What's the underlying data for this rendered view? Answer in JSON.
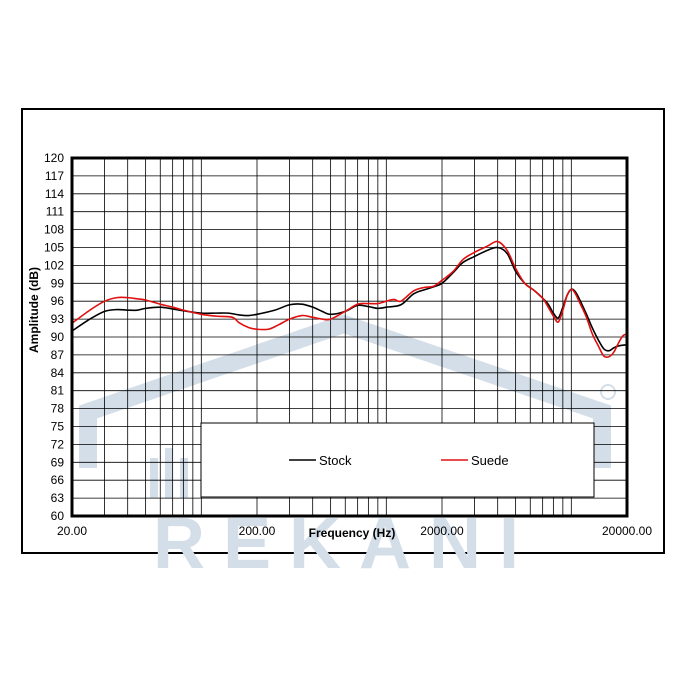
{
  "colors": {
    "stock": "#000000",
    "suede": "#e01010",
    "watermark": "#d2dde6"
  },
  "watermark": {
    "icon": "house-roof-logo-icon"
  },
  "chart_data": {
    "type": "line",
    "title": "",
    "xlabel": "Frequency (Hz)",
    "ylabel": "Amplitude (dB)",
    "x_scale": "log",
    "xlim": [
      20,
      20000
    ],
    "ylim": [
      60,
      120
    ],
    "x_ticks": [
      "20.00",
      "200.00",
      "2000.00",
      "20000.00"
    ],
    "x_tick_values": [
      20,
      200,
      2000,
      20000
    ],
    "y_ticks": [
      60,
      63,
      66,
      69,
      72,
      75,
      78,
      81,
      84,
      87,
      90,
      93,
      96,
      99,
      102,
      105,
      108,
      111,
      114,
      117,
      120
    ],
    "grid": true,
    "legend_position": "bottom-right inside plot",
    "series": [
      {
        "name": "Stock",
        "color": "#000000",
        "points": [
          [
            20,
            91.0
          ],
          [
            25,
            93.0
          ],
          [
            30,
            94.3
          ],
          [
            35,
            94.6
          ],
          [
            40,
            94.5
          ],
          [
            45,
            94.5
          ],
          [
            50,
            94.8
          ],
          [
            60,
            95.0
          ],
          [
            70,
            94.7
          ],
          [
            80,
            94.4
          ],
          [
            100,
            94.0
          ],
          [
            120,
            94.0
          ],
          [
            140,
            94.0
          ],
          [
            160,
            93.7
          ],
          [
            180,
            93.6
          ],
          [
            200,
            93.8
          ],
          [
            250,
            94.5
          ],
          [
            300,
            95.4
          ],
          [
            350,
            95.5
          ],
          [
            400,
            95.0
          ],
          [
            450,
            94.3
          ],
          [
            500,
            93.8
          ],
          [
            600,
            94.3
          ],
          [
            700,
            95.3
          ],
          [
            800,
            95.1
          ],
          [
            900,
            94.8
          ],
          [
            1000,
            95.0
          ],
          [
            1200,
            95.4
          ],
          [
            1400,
            97.2
          ],
          [
            1600,
            97.9
          ],
          [
            1800,
            98.4
          ],
          [
            2000,
            99.0
          ],
          [
            2300,
            100.8
          ],
          [
            2600,
            102.5
          ],
          [
            3000,
            103.5
          ],
          [
            3500,
            104.5
          ],
          [
            4000,
            105.0
          ],
          [
            4500,
            104.0
          ],
          [
            5000,
            101.0
          ],
          [
            5600,
            99.0
          ],
          [
            6300,
            97.8
          ],
          [
            7000,
            96.5
          ],
          [
            7500,
            95.5
          ],
          [
            8000,
            94.0
          ],
          [
            8500,
            93.2
          ],
          [
            9000,
            95.0
          ],
          [
            9500,
            97.0
          ],
          [
            10000,
            98.0
          ],
          [
            10500,
            97.6
          ],
          [
            11000,
            96.5
          ],
          [
            12000,
            94.0
          ],
          [
            13000,
            91.5
          ],
          [
            14000,
            89.5
          ],
          [
            15000,
            88.0
          ],
          [
            16000,
            87.7
          ],
          [
            17000,
            88.2
          ],
          [
            18000,
            88.5
          ],
          [
            20000,
            88.7
          ]
        ]
      },
      {
        "name": "Suede",
        "color": "#e01010",
        "points": [
          [
            20,
            92.3
          ],
          [
            25,
            94.5
          ],
          [
            30,
            96.0
          ],
          [
            35,
            96.6
          ],
          [
            40,
            96.6
          ],
          [
            45,
            96.4
          ],
          [
            50,
            96.2
          ],
          [
            60,
            95.5
          ],
          [
            70,
            95.0
          ],
          [
            80,
            94.5
          ],
          [
            100,
            93.8
          ],
          [
            120,
            93.5
          ],
          [
            140,
            93.4
          ],
          [
            150,
            93.2
          ],
          [
            160,
            92.4
          ],
          [
            180,
            91.6
          ],
          [
            200,
            91.3
          ],
          [
            230,
            91.3
          ],
          [
            260,
            92.0
          ],
          [
            300,
            93.0
          ],
          [
            350,
            93.6
          ],
          [
            400,
            93.3
          ],
          [
            450,
            93.0
          ],
          [
            500,
            93.0
          ],
          [
            600,
            94.3
          ],
          [
            700,
            95.5
          ],
          [
            800,
            95.6
          ],
          [
            900,
            95.6
          ],
          [
            1000,
            96.0
          ],
          [
            1100,
            96.3
          ],
          [
            1200,
            96.0
          ],
          [
            1400,
            97.7
          ],
          [
            1600,
            98.3
          ],
          [
            1800,
            98.5
          ],
          [
            2000,
            99.5
          ],
          [
            2300,
            101.0
          ],
          [
            2600,
            103.0
          ],
          [
            3000,
            104.2
          ],
          [
            3500,
            105.2
          ],
          [
            4000,
            106.0
          ],
          [
            4500,
            104.5
          ],
          [
            5000,
            101.5
          ],
          [
            5600,
            99.0
          ],
          [
            6300,
            97.8
          ],
          [
            7000,
            96.5
          ],
          [
            7500,
            95.0
          ],
          [
            8000,
            93.5
          ],
          [
            8500,
            92.5
          ],
          [
            9000,
            94.5
          ],
          [
            9500,
            97.0
          ],
          [
            10000,
            98.0
          ],
          [
            10500,
            97.3
          ],
          [
            11000,
            96.0
          ],
          [
            12000,
            93.5
          ],
          [
            13000,
            90.5
          ],
          [
            14000,
            88.5
          ],
          [
            15000,
            86.8
          ],
          [
            16000,
            86.7
          ],
          [
            17000,
            87.5
          ],
          [
            18000,
            89.0
          ],
          [
            19000,
            90.2
          ],
          [
            20000,
            90.5
          ]
        ]
      }
    ]
  }
}
